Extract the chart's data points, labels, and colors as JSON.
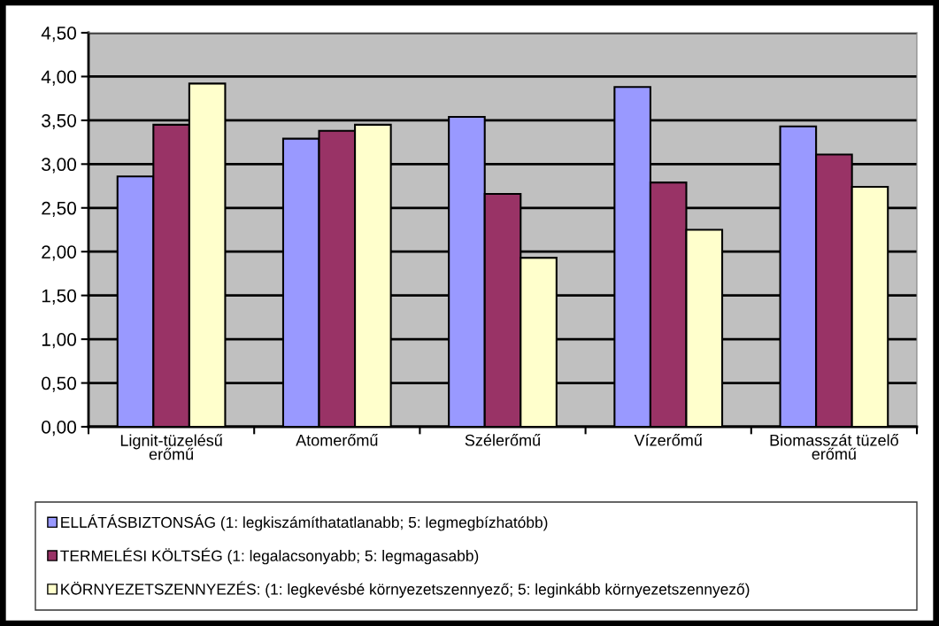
{
  "chart_data": {
    "type": "bar",
    "categories": [
      "Lignit-tüzelésű erőmű",
      "Atomerőmű",
      "Szélerőmű",
      "Vízerőmű",
      "Biomasszát tüzelő erőmű"
    ],
    "series": [
      {
        "name": "ELLÁTÁSBIZTONSÁG (1: legkiszámíthatatlanabb; 5: legmegbízhatóbb)",
        "color": "#9999ff",
        "values": [
          2.86,
          3.29,
          3.54,
          3.88,
          3.43
        ]
      },
      {
        "name": "TERMELÉSI KÖLTSÉG (1: legalacsonyabb; 5: legmagasabb)",
        "color": "#993366",
        "values": [
          3.45,
          3.38,
          2.66,
          2.79,
          3.11
        ]
      },
      {
        "name": "KÖRNYEZETSZENNYEZÉS: (1: legkevésbé környezetszennyező; 5: leginkább környezetszennyező)",
        "color": "#ffffcc",
        "values": [
          3.92,
          3.45,
          1.93,
          2.25,
          2.74
        ]
      }
    ],
    "ylim": [
      0,
      4.5
    ],
    "yticks": [
      {
        "value": 0,
        "label": "0,00"
      },
      {
        "value": 0.5,
        "label": "0,50"
      },
      {
        "value": 1,
        "label": "1,00"
      },
      {
        "value": 1.5,
        "label": "1,50"
      },
      {
        "value": 2,
        "label": "2,00"
      },
      {
        "value": 2.5,
        "label": "2,50"
      },
      {
        "value": 3,
        "label": "3,00"
      },
      {
        "value": 3.5,
        "label": "3,50"
      },
      {
        "value": 4,
        "label": "4,00"
      },
      {
        "value": 4.5,
        "label": "4,50"
      }
    ],
    "grid": "y",
    "legend": "bottom"
  }
}
